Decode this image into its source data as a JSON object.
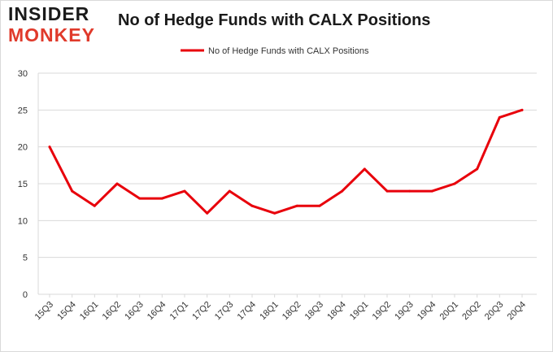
{
  "logo": {
    "line1": "INSIDER",
    "line2": "MONKEY"
  },
  "colors": {
    "series": "#e8000b",
    "grid": "#d9d9d9",
    "text": "#333333"
  },
  "chart_data": {
    "type": "line",
    "title": "No of Hedge Funds with CALX Positions",
    "xlabel": "",
    "ylabel": "",
    "ylim": [
      0,
      30
    ],
    "yticks": [
      0,
      5,
      10,
      15,
      20,
      25,
      30
    ],
    "grid": true,
    "legend_position": "top-center",
    "categories": [
      "15Q3",
      "15Q4",
      "16Q1",
      "16Q2",
      "16Q3",
      "16Q4",
      "17Q1",
      "17Q2",
      "17Q3",
      "17Q4",
      "18Q1",
      "18Q2",
      "18Q3",
      "18Q4",
      "19Q1",
      "19Q2",
      "19Q3",
      "19Q4",
      "20Q1",
      "20Q2",
      "20Q3",
      "20Q4"
    ],
    "series": [
      {
        "name": "No of Hedge Funds with CALX Positions",
        "values": [
          20,
          14,
          12,
          15,
          13,
          13,
          14,
          11,
          14,
          12,
          11,
          12,
          12,
          14,
          17,
          14,
          14,
          14,
          15,
          17,
          24,
          25
        ]
      }
    ]
  }
}
